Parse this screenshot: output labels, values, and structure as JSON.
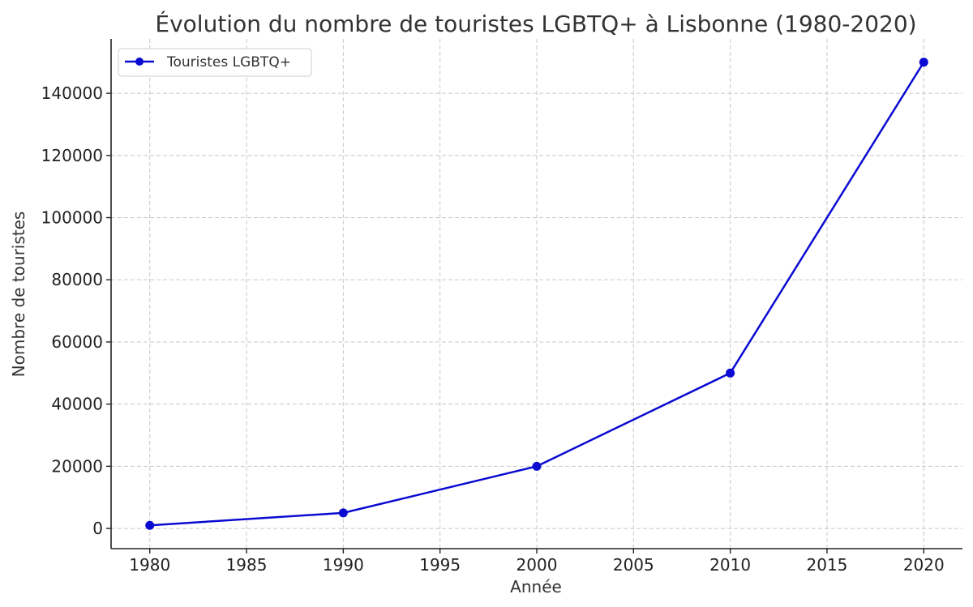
{
  "chart_data": {
    "type": "line",
    "title": "Évolution du nombre de touristes LGBTQ+ à Lisbonne (1980-2020)",
    "xlabel": "Année",
    "ylabel": "Nombre de touristes",
    "xlim": [
      1978,
      2022
    ],
    "ylim": [
      -6500,
      157500
    ],
    "xticks": [
      1980,
      1985,
      1990,
      1995,
      2000,
      2005,
      2010,
      2015,
      2020
    ],
    "yticks": [
      0,
      20000,
      40000,
      60000,
      80000,
      100000,
      120000,
      140000
    ],
    "grid": true,
    "legend_position": "top-left",
    "series": [
      {
        "name": "Touristes LGBTQ+",
        "color": "#0a0ad2",
        "marker": "circle",
        "x": [
          1980,
          1990,
          2000,
          2010,
          2020
        ],
        "y": [
          1000,
          5000,
          20000,
          50000,
          150000
        ]
      }
    ]
  }
}
